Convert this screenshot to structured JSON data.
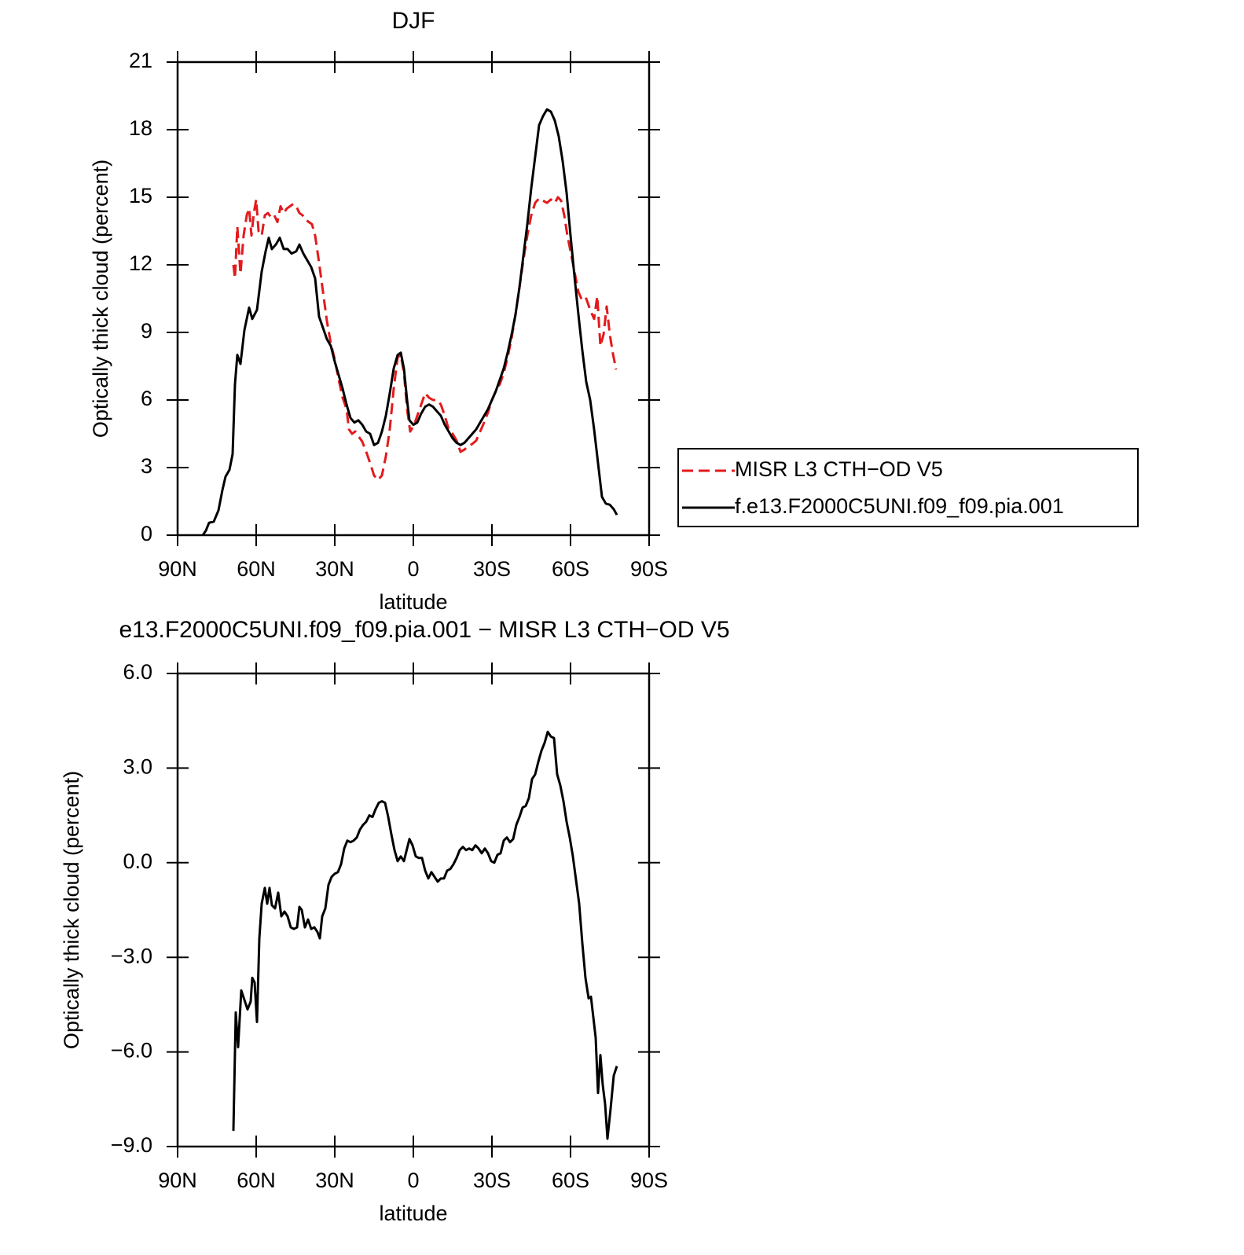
{
  "chart_data": [
    {
      "type": "line",
      "title": "DJF",
      "xlabel": "latitude",
      "ylabel": "Optically thick cloud (percent)",
      "xlim": [
        90,
        -90
      ],
      "xticks": [
        {
          "value": 90,
          "label": "90N"
        },
        {
          "value": 60,
          "label": "60N"
        },
        {
          "value": 30,
          "label": "30N"
        },
        0,
        {
          "value": -30,
          "label": "30S"
        },
        {
          "value": -60,
          "label": "60S"
        },
        {
          "value": -90,
          "label": "90S"
        }
      ],
      "ylim": [
        0,
        21
      ],
      "yticks": [
        0,
        3,
        6,
        9,
        12,
        15,
        18,
        21
      ],
      "legend": "outside right",
      "series": [
        {
          "name": "MISR L3 CTH−OD V5",
          "color": "#e41a1c",
          "dashed": true,
          "x": [
            68.7,
            68.1,
            67.2,
            66.0,
            64.8,
            63.6,
            62.7,
            61.8,
            60.9,
            60.0,
            59.1,
            57.9,
            56.7,
            55.5,
            54.3,
            53.1,
            51.9,
            50.7,
            49.5,
            48.3,
            47.1,
            45.9,
            44.7,
            43.5,
            42.3,
            41.1,
            39.9,
            38.7,
            37.5,
            36.0,
            34.5,
            33.0,
            31.5,
            30.0,
            28.5,
            27.0,
            25.5,
            24.6,
            23.4,
            22.2,
            21.0,
            19.5,
            18.0,
            16.5,
            15.0,
            13.5,
            12.0,
            10.5,
            9.0,
            7.5,
            6.0,
            4.8,
            3.6,
            2.4,
            1.2,
            -0.3,
            -1.5,
            -3.0,
            -4.5,
            -6.0,
            -7.5,
            -9.0,
            -10.5,
            -12.0,
            -13.5,
            -15.0,
            -16.5,
            -18.0,
            -19.5,
            -21.0,
            -22.5,
            -24.0,
            -25.5,
            -27.0,
            -28.5,
            -30.0,
            -31.5,
            -33.0,
            -34.5,
            -36.0,
            -37.5,
            -39.0,
            -40.5,
            -42.0,
            -43.5,
            -45.0,
            -46.5,
            -48.0,
            -49.5,
            -51.0,
            -52.5,
            -54.0,
            -55.2,
            -56.4,
            -57.6,
            -58.8,
            -60.0,
            -61.5,
            -63.0,
            -64.5,
            -66.0,
            -67.5,
            -69.0,
            -70.2,
            -71.4,
            -72.6,
            -73.8,
            -75.0,
            -76.2,
            -77.4
          ],
          "values": [
            12.0,
            11.4,
            13.7,
            11.6,
            13.3,
            14.2,
            14.5,
            13.3,
            14.3,
            14.9,
            13.5,
            13.3,
            14.2,
            14.3,
            14.1,
            14.2,
            13.9,
            14.6,
            14.3,
            14.5,
            14.6,
            14.7,
            14.6,
            14.3,
            14.2,
            14.0,
            13.9,
            13.8,
            13.3,
            12.1,
            10.8,
            9.5,
            8.5,
            7.8,
            6.9,
            6.1,
            5.6,
            4.7,
            4.5,
            4.6,
            4.4,
            4.15,
            3.7,
            3.2,
            2.65,
            2.45,
            2.65,
            3.5,
            4.7,
            6.5,
            7.9,
            8.0,
            7.2,
            5.6,
            4.6,
            4.9,
            5.3,
            5.8,
            6.3,
            6.1,
            6.0,
            6.0,
            5.8,
            5.3,
            4.7,
            4.5,
            4.2,
            3.7,
            3.8,
            3.95,
            4.05,
            4.2,
            4.6,
            5.0,
            5.45,
            6.0,
            6.4,
            6.7,
            7.2,
            7.9,
            8.75,
            9.8,
            11.0,
            12.2,
            13.3,
            14.2,
            14.75,
            14.95,
            14.85,
            14.75,
            14.9,
            14.75,
            15.0,
            14.85,
            14.2,
            13.3,
            12.6,
            11.7,
            10.8,
            10.4,
            10.5,
            10.0,
            9.6,
            10.6,
            8.4,
            8.9,
            10.15,
            8.9,
            8.05,
            7.35
          ]
        },
        {
          "name": "f.e13.F2000C5UNI.f09_f09.pia.001",
          "color": "#000000",
          "x": [
            80.4,
            79.2,
            78.0,
            76.2,
            74.4,
            72.9,
            71.7,
            70.2,
            69.0,
            68.1,
            67.2,
            66.0,
            64.5,
            62.7,
            61.5,
            59.7,
            57.9,
            56.4,
            55.2,
            54.0,
            52.5,
            51.0,
            49.5,
            48.0,
            46.5,
            44.7,
            43.5,
            42.0,
            40.5,
            39.0,
            37.5,
            36.0,
            34.5,
            33.0,
            31.5,
            30.0,
            28.5,
            27.0,
            25.5,
            24.0,
            22.5,
            21.0,
            19.5,
            18.0,
            16.5,
            15.0,
            13.5,
            12.0,
            10.5,
            9.0,
            7.5,
            6.0,
            4.8,
            3.6,
            2.4,
            1.5,
            0,
            -1.5,
            -3.0,
            -4.5,
            -6.0,
            -7.5,
            -9.0,
            -10.5,
            -12.0,
            -13.5,
            -15.0,
            -16.5,
            -18.0,
            -19.5,
            -21.0,
            -22.5,
            -24.0,
            -25.5,
            -27.0,
            -28.5,
            -30.0,
            -31.5,
            -33.0,
            -34.5,
            -36.0,
            -37.5,
            -39.0,
            -40.5,
            -42.0,
            -43.5,
            -45.0,
            -46.5,
            -48.0,
            -49.5,
            -51.0,
            -52.5,
            -54.0,
            -55.5,
            -57.0,
            -58.5,
            -60.0,
            -61.5,
            -63.0,
            -64.5,
            -66.0,
            -67.5,
            -69.0,
            -70.5,
            -72.0,
            -73.5,
            -75.0,
            -76.5,
            -77.7
          ],
          "values": [
            0,
            0.2,
            0.55,
            0.6,
            1.1,
            2.0,
            2.6,
            2.9,
            3.6,
            6.7,
            8.0,
            7.6,
            9.1,
            10.1,
            9.6,
            10.0,
            11.7,
            12.6,
            13.2,
            12.7,
            12.9,
            13.2,
            12.7,
            12.7,
            12.5,
            12.6,
            12.9,
            12.5,
            12.2,
            11.9,
            11.4,
            9.7,
            9.2,
            8.7,
            8.4,
            7.7,
            7.1,
            6.5,
            5.8,
            5.2,
            5.0,
            5.1,
            4.9,
            4.6,
            4.5,
            4.0,
            4.1,
            4.6,
            5.3,
            6.3,
            7.4,
            8.0,
            8.1,
            7.4,
            6.0,
            5.1,
            4.9,
            5.0,
            5.4,
            5.7,
            5.8,
            5.7,
            5.5,
            5.3,
            4.9,
            4.6,
            4.3,
            4.1,
            4.0,
            4.1,
            4.3,
            4.5,
            4.7,
            5.0,
            5.3,
            5.6,
            6.0,
            6.4,
            6.9,
            7.4,
            8.1,
            8.9,
            9.8,
            11.0,
            12.4,
            13.8,
            15.4,
            16.8,
            18.2,
            18.6,
            18.9,
            18.8,
            18.4,
            17.7,
            16.6,
            15.2,
            13.3,
            11.5,
            9.8,
            8.2,
            6.8,
            6.0,
            4.7,
            3.2,
            1.7,
            1.4,
            1.35,
            1.15,
            0.9
          ]
        }
      ]
    },
    {
      "type": "line",
      "title": "e13.F2000C5UNI.f09_f09.pia.001 − MISR L3 CTH−OD V5",
      "xlabel": "latitude",
      "ylabel": "Optically thick cloud (percent)",
      "xlim": [
        90,
        -90
      ],
      "xticks": [
        {
          "value": 90,
          "label": "90N"
        },
        {
          "value": 60,
          "label": "60N"
        },
        {
          "value": 30,
          "label": "30N"
        },
        0,
        {
          "value": -30,
          "label": "30S"
        },
        {
          "value": -60,
          "label": "60S"
        },
        {
          "value": -90,
          "label": "90S"
        }
      ],
      "ylim": [
        -9,
        6
      ],
      "yticks": [
        {
          "value": -9,
          "label": "−9.0"
        },
        {
          "value": -6,
          "label": "−6.0"
        },
        {
          "value": -3,
          "label": "−3.0"
        },
        {
          "value": 0,
          "label": "0.0"
        },
        {
          "value": 3,
          "label": "3.0"
        },
        {
          "value": 6,
          "label": "6.0"
        }
      ],
      "series": [
        {
          "color": "#000000",
          "x": [
            68.7,
            67.8,
            66.9,
            65.7,
            64.5,
            63.3,
            62.1,
            61.5,
            60.6,
            59.7,
            58.8,
            57.9,
            56.7,
            55.8,
            54.9,
            54.0,
            52.8,
            51.6,
            50.4,
            49.2,
            48.0,
            46.8,
            45.6,
            44.4,
            43.5,
            42.6,
            41.4,
            40.2,
            39.0,
            37.8,
            36.6,
            35.7,
            34.8,
            33.6,
            32.4,
            31.2,
            30.0,
            28.8,
            27.6,
            26.4,
            25.2,
            24.0,
            22.8,
            21.6,
            20.4,
            19.2,
            18.0,
            16.8,
            15.6,
            14.4,
            13.2,
            12.0,
            10.8,
            9.6,
            8.4,
            7.2,
            6.0,
            4.8,
            3.6,
            2.4,
            1.5,
            0.3,
            -0.9,
            -2.1,
            -3.3,
            -4.5,
            -5.7,
            -6.9,
            -8.1,
            -9.3,
            -10.5,
            -11.7,
            -12.9,
            -14.1,
            -15.3,
            -16.5,
            -17.7,
            -18.9,
            -20.1,
            -21.3,
            -22.5,
            -23.7,
            -24.9,
            -26.1,
            -27.3,
            -28.5,
            -29.7,
            -30.9,
            -32.1,
            -33.3,
            -34.5,
            -35.7,
            -36.9,
            -38.1,
            -39.3,
            -40.5,
            -41.7,
            -42.9,
            -44.1,
            -45.3,
            -46.5,
            -47.7,
            -48.9,
            -50.1,
            -51.3,
            -52.5,
            -53.7,
            -54.9,
            -56.1,
            -57.3,
            -58.5,
            -59.7,
            -60.9,
            -62.1,
            -63.3,
            -64.5,
            -65.7,
            -66.9,
            -67.8,
            -68.7,
            -69.6,
            -70.5,
            -71.4,
            -72.3,
            -73.2,
            -74.1,
            -75.3,
            -76.5,
            -77.7
          ],
          "values": [
            -8.5,
            -4.75,
            -5.85,
            -4.05,
            -4.35,
            -4.65,
            -4.4,
            -3.65,
            -3.8,
            -5.05,
            -2.4,
            -1.3,
            -0.8,
            -1.3,
            -0.8,
            -1.35,
            -1.45,
            -0.95,
            -1.7,
            -1.55,
            -1.7,
            -2.05,
            -2.1,
            -2.05,
            -1.4,
            -1.5,
            -2.05,
            -1.8,
            -2.1,
            -2.05,
            -2.2,
            -2.4,
            -1.7,
            -1.45,
            -0.7,
            -0.45,
            -0.35,
            -0.3,
            -0.05,
            0.45,
            0.7,
            0.65,
            0.7,
            0.8,
            1.05,
            1.2,
            1.3,
            1.5,
            1.45,
            1.7,
            1.9,
            1.95,
            1.9,
            1.45,
            0.9,
            0.4,
            0.05,
            0.2,
            0.05,
            0.45,
            0.75,
            0.55,
            0.2,
            0.15,
            0.15,
            -0.25,
            -0.5,
            -0.3,
            -0.45,
            -0.6,
            -0.5,
            -0.5,
            -0.25,
            -0.2,
            -0.05,
            0.15,
            0.4,
            0.5,
            0.4,
            0.45,
            0.4,
            0.55,
            0.45,
            0.3,
            0.45,
            0.3,
            0.05,
            0.0,
            0.25,
            0.3,
            0.7,
            0.8,
            0.65,
            0.75,
            1.2,
            1.45,
            1.75,
            1.8,
            2.05,
            2.65,
            2.8,
            3.2,
            3.55,
            3.8,
            4.15,
            4.0,
            3.95,
            2.8,
            2.45,
            1.95,
            1.3,
            0.8,
            0.2,
            -0.55,
            -1.3,
            -2.55,
            -3.65,
            -4.3,
            -4.25,
            -4.9,
            -5.55,
            -7.3,
            -6.1,
            -7.05,
            -7.65,
            -8.75,
            -7.8,
            -6.75,
            -6.45
          ]
        }
      ]
    }
  ]
}
